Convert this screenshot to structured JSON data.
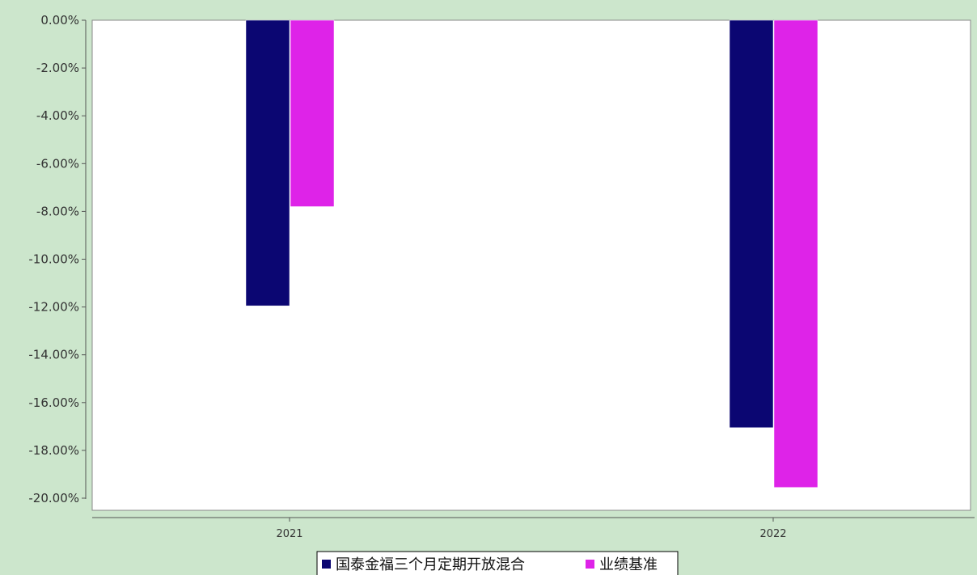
{
  "chart_data": {
    "type": "bar",
    "categories": [
      "2021",
      "2022"
    ],
    "series": [
      {
        "name": "国泰金福三个月定期开放混合",
        "values": [
          -11.95,
          -17.05
        ],
        "color": "#0b0672"
      },
      {
        "name": "业绩基准",
        "values": [
          -7.8,
          -19.55
        ],
        "color": "#de23e8"
      }
    ],
    "ylim": [
      -20.0,
      0.0
    ],
    "yticks": [
      "0.00%",
      "-2.00%",
      "-4.00%",
      "-6.00%",
      "-8.00%",
      "-10.00%",
      "-12.00%",
      "-14.00%",
      "-16.00%",
      "-18.00%",
      "-20.00%"
    ],
    "ytick_values": [
      0,
      -2,
      -4,
      -6,
      -8,
      -10,
      -12,
      -14,
      -16,
      -18,
      -20
    ],
    "xlabel": "",
    "ylabel": "",
    "grid": false,
    "legend_position": "bottom-center",
    "background_color": "#cce6cc",
    "plot_color": "#ffffff"
  }
}
